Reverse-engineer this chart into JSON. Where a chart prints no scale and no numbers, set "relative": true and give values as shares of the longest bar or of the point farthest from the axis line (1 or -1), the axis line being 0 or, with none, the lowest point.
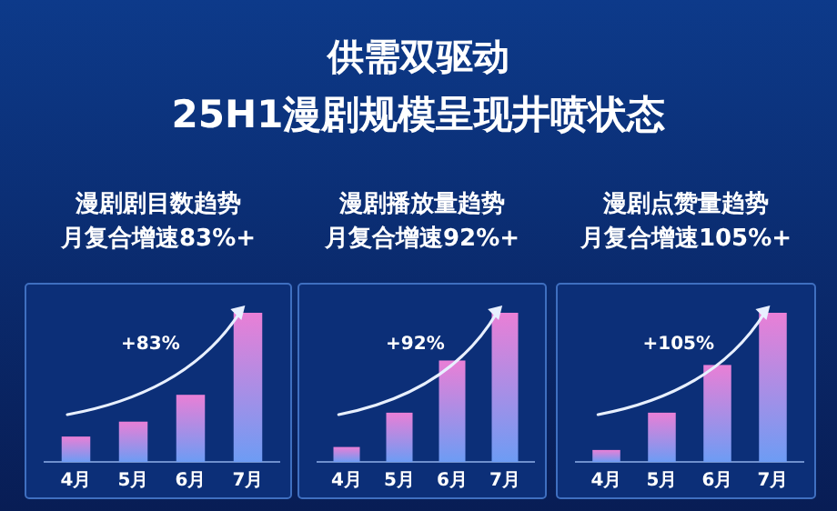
{
  "chart_data": [
    {
      "type": "other",
      "title": "供需双驱动",
      "subtitle": "25H1漫剧规模呈现井喷状态"
    },
    {
      "type": "bar",
      "title": "漫剧剧目数趋势",
      "subtitle": "月复合增速83%+",
      "categories": [
        "4月",
        "5月",
        "6月",
        "7月"
      ],
      "relative": true,
      "color": "#e97fd6",
      "values": [
        0.17,
        0.27,
        0.45,
        1
      ],
      "annotations": [
        "+83%"
      ]
    },
    {
      "type": "bar",
      "title": "漫剧播放量趋势",
      "subtitle": "月复合增速92%+",
      "categories": [
        "4月",
        "5月",
        "6月",
        "7月"
      ],
      "relative": true,
      "color": "#e97fd6",
      "values": [
        0.1,
        0.33,
        0.68,
        1
      ],
      "annotations": [
        "+92%"
      ]
    },
    {
      "type": "bar",
      "title": "漫剧点赞量趋势",
      "subtitle": "月复合增速105%+",
      "categories": [
        "4月",
        "5月",
        "6月",
        "7月"
      ],
      "relative": true,
      "color": "#e97fd6",
      "values": [
        0.08,
        0.33,
        0.65,
        1
      ],
      "annotations": [
        "+105%"
      ]
    }
  ]
}
